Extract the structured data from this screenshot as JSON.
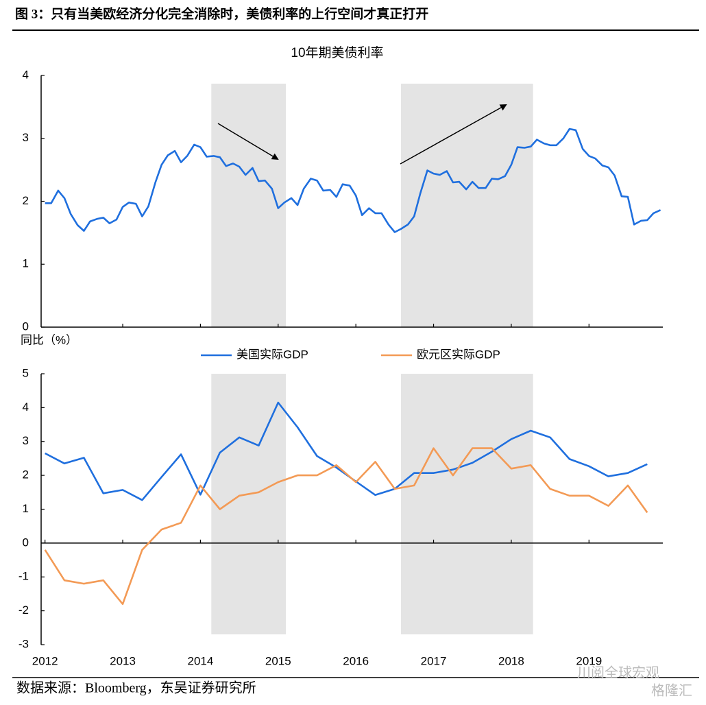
{
  "figure_title": "图 3：只有当美欧经济分化完全消除时，美债利率的上行空间才真正打开",
  "source": "数据来源：Bloomberg，东吴证券研究所",
  "watermark": [
    "川阅全球宏观",
    "格隆汇"
  ],
  "chart_data": [
    {
      "type": "line",
      "title": "10年期美债利率",
      "x": [
        2012,
        2012.08,
        2012.17,
        2012.25,
        2012.33,
        2012.42,
        2012.5,
        2012.58,
        2012.67,
        2012.75,
        2012.83,
        2012.92,
        2013,
        2013.08,
        2013.17,
        2013.25,
        2013.33,
        2013.42,
        2013.5,
        2013.58,
        2013.67,
        2013.75,
        2013.83,
        2013.92,
        2014,
        2014.08,
        2014.17,
        2014.25,
        2014.33,
        2014.42,
        2014.5,
        2014.58,
        2014.67,
        2014.75,
        2014.83,
        2014.92,
        2015,
        2015.08,
        2015.17,
        2015.25,
        2015.33,
        2015.42,
        2015.5,
        2015.58,
        2015.67,
        2015.75,
        2015.83,
        2015.92,
        2016,
        2016.08,
        2016.17,
        2016.25,
        2016.33,
        2016.42,
        2016.5,
        2016.58,
        2016.67,
        2016.75,
        2016.83,
        2016.92,
        2017,
        2017.08,
        2017.17,
        2017.25,
        2017.33,
        2017.42,
        2017.5,
        2017.58,
        2017.67,
        2017.75,
        2017.83,
        2017.92,
        2018,
        2018.08,
        2018.17,
        2018.25,
        2018.33,
        2018.42,
        2018.5,
        2018.58,
        2018.67,
        2018.75,
        2018.83,
        2018.92,
        2019,
        2019.08,
        2019.17,
        2019.25,
        2019.33,
        2019.42,
        2019.5,
        2019.58,
        2019.67,
        2019.75,
        2019.83,
        2019.92
      ],
      "series": [
        {
          "name": "10年期美债利率",
          "color": "#1f6fde",
          "values": [
            1.97,
            1.97,
            2.17,
            2.05,
            1.8,
            1.62,
            1.53,
            1.68,
            1.72,
            1.74,
            1.65,
            1.71,
            1.91,
            1.98,
            1.96,
            1.76,
            1.92,
            2.3,
            2.58,
            2.73,
            2.8,
            2.62,
            2.72,
            2.9,
            2.86,
            2.71,
            2.72,
            2.7,
            2.56,
            2.6,
            2.55,
            2.42,
            2.53,
            2.32,
            2.33,
            2.2,
            1.89,
            1.98,
            2.05,
            1.94,
            2.2,
            2.36,
            2.33,
            2.17,
            2.18,
            2.07,
            2.27,
            2.25,
            2.09,
            1.78,
            1.89,
            1.81,
            1.81,
            1.63,
            1.51,
            1.56,
            1.63,
            1.76,
            2.13,
            2.49,
            2.44,
            2.42,
            2.48,
            2.3,
            2.31,
            2.19,
            2.31,
            2.21,
            2.21,
            2.36,
            2.35,
            2.4,
            2.58,
            2.86,
            2.85,
            2.87,
            2.98,
            2.92,
            2.89,
            2.89,
            3.0,
            3.15,
            3.13,
            2.83,
            2.72,
            2.68,
            2.57,
            2.54,
            2.41,
            2.08,
            2.07,
            1.63,
            1.69,
            1.7,
            1.81,
            1.86
          ]
        }
      ],
      "xlim": [
        2011.95,
        2019.95
      ],
      "xticks": [
        2013,
        2014,
        2015,
        2016,
        2017,
        2018,
        2019
      ],
      "x_tick_labels": false,
      "ylim": [
        0,
        4
      ],
      "yticks": [
        0,
        1,
        2,
        3,
        4
      ],
      "shaded_periods": [
        [
          2014.14,
          2015.1
        ],
        [
          2016.58,
          2018.28
        ]
      ]
    },
    {
      "type": "line",
      "y_label": "同比（%）",
      "x": [
        2012,
        2012.25,
        2012.5,
        2012.75,
        2013,
        2013.25,
        2013.5,
        2013.75,
        2014,
        2014.25,
        2014.5,
        2014.75,
        2015,
        2015.25,
        2015.5,
        2015.75,
        2016,
        2016.25,
        2016.5,
        2016.75,
        2017,
        2017.25,
        2017.5,
        2017.75,
        2018,
        2018.25,
        2018.5,
        2018.75,
        2019,
        2019.25,
        2019.5,
        2019.75
      ],
      "series": [
        {
          "name": "美国实际GDP",
          "color": "#1f6fde",
          "values": [
            2.65,
            2.35,
            2.52,
            1.47,
            1.57,
            1.27,
            1.95,
            2.62,
            1.43,
            2.67,
            3.12,
            2.88,
            4.15,
            3.42,
            2.57,
            2.23,
            1.82,
            1.42,
            1.6,
            2.07,
            2.07,
            2.17,
            2.37,
            2.7,
            3.07,
            3.32,
            3.12,
            2.48,
            2.27,
            1.97,
            2.07,
            2.33
          ]
        },
        {
          "name": "欧元区实际GDP",
          "color": "#f39a55",
          "values": [
            -0.2,
            -1.1,
            -1.2,
            -1.1,
            -1.8,
            -0.2,
            0.4,
            0.6,
            1.7,
            1.0,
            1.4,
            1.5,
            1.8,
            2.0,
            2.0,
            2.3,
            1.8,
            2.4,
            1.6,
            1.7,
            2.8,
            2.0,
            2.8,
            2.8,
            2.2,
            2.3,
            1.6,
            1.4,
            1.4,
            1.1,
            1.7,
            0.9
          ]
        }
      ],
      "xlim": [
        2011.95,
        2019.95
      ],
      "xticks": [
        2012,
        2013,
        2014,
        2015,
        2016,
        2017,
        2018,
        2019
      ],
      "x_tick_labels": true,
      "ylim": [
        -3,
        5
      ],
      "yticks": [
        -3,
        -2,
        -1,
        0,
        1,
        2,
        3,
        4,
        5
      ],
      "shaded_periods": [
        [
          2014.14,
          2015.1
        ],
        [
          2016.58,
          2018.28
        ]
      ]
    }
  ]
}
